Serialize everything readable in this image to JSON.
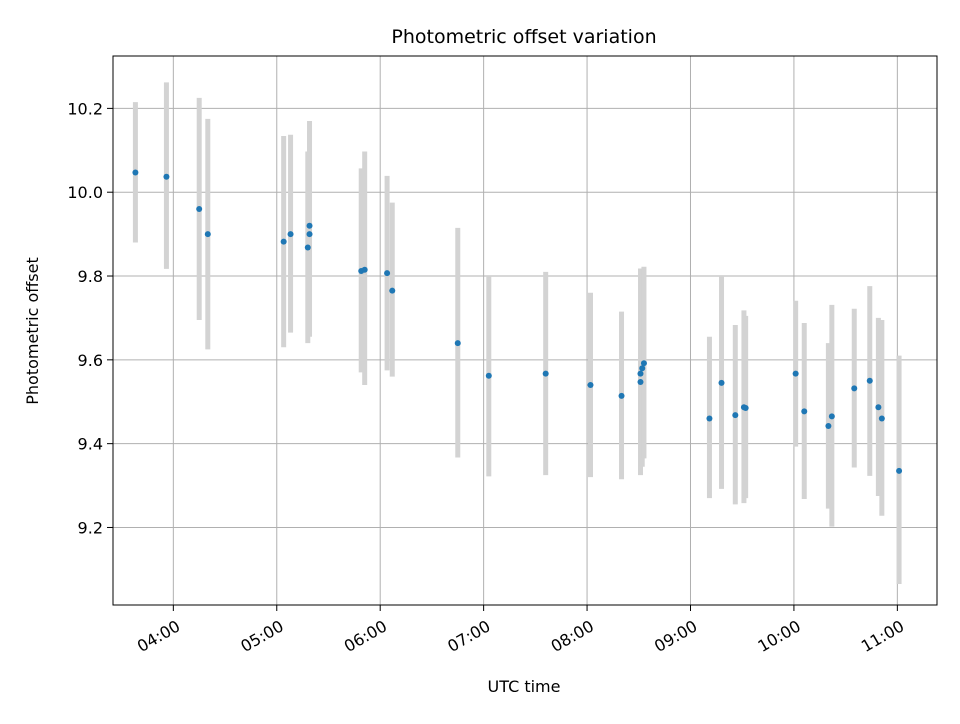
{
  "chart_data": {
    "type": "scatter",
    "title": "Photometric offset variation",
    "xlabel": "UTC time",
    "ylabel": "Photometric offset",
    "xlim": [
      "03:25",
      "11:23"
    ],
    "ylim": [
      9.015,
      10.325
    ],
    "x_ticks": [
      "04:00",
      "05:00",
      "06:00",
      "07:00",
      "08:00",
      "09:00",
      "10:00",
      "11:00"
    ],
    "y_ticks": [
      "9.2",
      "9.4",
      "9.6",
      "9.8",
      "10.0",
      "10.2"
    ],
    "grid": true,
    "marker_color": "#1f77b4",
    "errorbar_color": "#d3d3d3",
    "points": [
      {
        "x": "03:38",
        "y": 10.047,
        "ylo": 9.88,
        "yhi": 10.215
      },
      {
        "x": "03:56",
        "y": 10.037,
        "ylo": 9.817,
        "yhi": 10.262
      },
      {
        "x": "04:15",
        "y": 9.96,
        "ylo": 9.695,
        "yhi": 10.225
      },
      {
        "x": "04:20",
        "y": 9.9,
        "ylo": 9.625,
        "yhi": 10.175
      },
      {
        "x": "05:04",
        "y": 9.882,
        "ylo": 9.63,
        "yhi": 10.134
      },
      {
        "x": "05:08",
        "y": 9.9,
        "ylo": 9.665,
        "yhi": 10.137
      },
      {
        "x": "05:18",
        "y": 9.868,
        "ylo": 9.64,
        "yhi": 10.097
      },
      {
        "x": "05:19",
        "y": 9.9,
        "ylo": 9.655,
        "yhi": 10.145
      },
      {
        "x": "05:19",
        "y": 9.92,
        "ylo": 9.67,
        "yhi": 10.17
      },
      {
        "x": "05:49",
        "y": 9.812,
        "ylo": 9.57,
        "yhi": 10.057
      },
      {
        "x": "05:51",
        "y": 9.815,
        "ylo": 9.54,
        "yhi": 10.097
      },
      {
        "x": "06:04",
        "y": 9.807,
        "ylo": 9.575,
        "yhi": 10.039
      },
      {
        "x": "06:07",
        "y": 9.765,
        "ylo": 9.56,
        "yhi": 9.975
      },
      {
        "x": "06:45",
        "y": 9.64,
        "ylo": 9.367,
        "yhi": 9.915
      },
      {
        "x": "07:03",
        "y": 9.562,
        "ylo": 9.322,
        "yhi": 9.798
      },
      {
        "x": "07:36",
        "y": 9.567,
        "ylo": 9.325,
        "yhi": 9.81
      },
      {
        "x": "08:02",
        "y": 9.54,
        "ylo": 9.32,
        "yhi": 9.76
      },
      {
        "x": "08:20",
        "y": 9.514,
        "ylo": 9.315,
        "yhi": 9.715
      },
      {
        "x": "08:31",
        "y": 9.567,
        "ylo": 9.325,
        "yhi": 9.818
      },
      {
        "x": "08:31",
        "y": 9.547,
        "ylo": 9.33,
        "yhi": 9.775
      },
      {
        "x": "08:32",
        "y": 9.58,
        "ylo": 9.345,
        "yhi": 9.805
      },
      {
        "x": "08:33",
        "y": 9.592,
        "ylo": 9.365,
        "yhi": 9.822
      },
      {
        "x": "09:11",
        "y": 9.46,
        "ylo": 9.27,
        "yhi": 9.655
      },
      {
        "x": "09:18",
        "y": 9.545,
        "ylo": 9.292,
        "yhi": 9.8
      },
      {
        "x": "09:26",
        "y": 9.468,
        "ylo": 9.255,
        "yhi": 9.683
      },
      {
        "x": "09:31",
        "y": 9.487,
        "ylo": 9.258,
        "yhi": 9.718
      },
      {
        "x": "09:32",
        "y": 9.485,
        "ylo": 9.27,
        "yhi": 9.705
      },
      {
        "x": "10:01",
        "y": 9.567,
        "ylo": 9.393,
        "yhi": 9.741
      },
      {
        "x": "10:06",
        "y": 9.477,
        "ylo": 9.268,
        "yhi": 9.688
      },
      {
        "x": "10:20",
        "y": 9.442,
        "ylo": 9.245,
        "yhi": 9.64
      },
      {
        "x": "10:22",
        "y": 9.465,
        "ylo": 9.202,
        "yhi": 9.731
      },
      {
        "x": "10:35",
        "y": 9.532,
        "ylo": 9.343,
        "yhi": 9.722
      },
      {
        "x": "10:44",
        "y": 9.55,
        "ylo": 9.323,
        "yhi": 9.776
      },
      {
        "x": "10:49",
        "y": 9.487,
        "ylo": 9.275,
        "yhi": 9.7
      },
      {
        "x": "10:51",
        "y": 9.46,
        "ylo": 9.228,
        "yhi": 9.695
      },
      {
        "x": "11:01",
        "y": 9.335,
        "ylo": 9.065,
        "yhi": 9.61
      }
    ]
  }
}
